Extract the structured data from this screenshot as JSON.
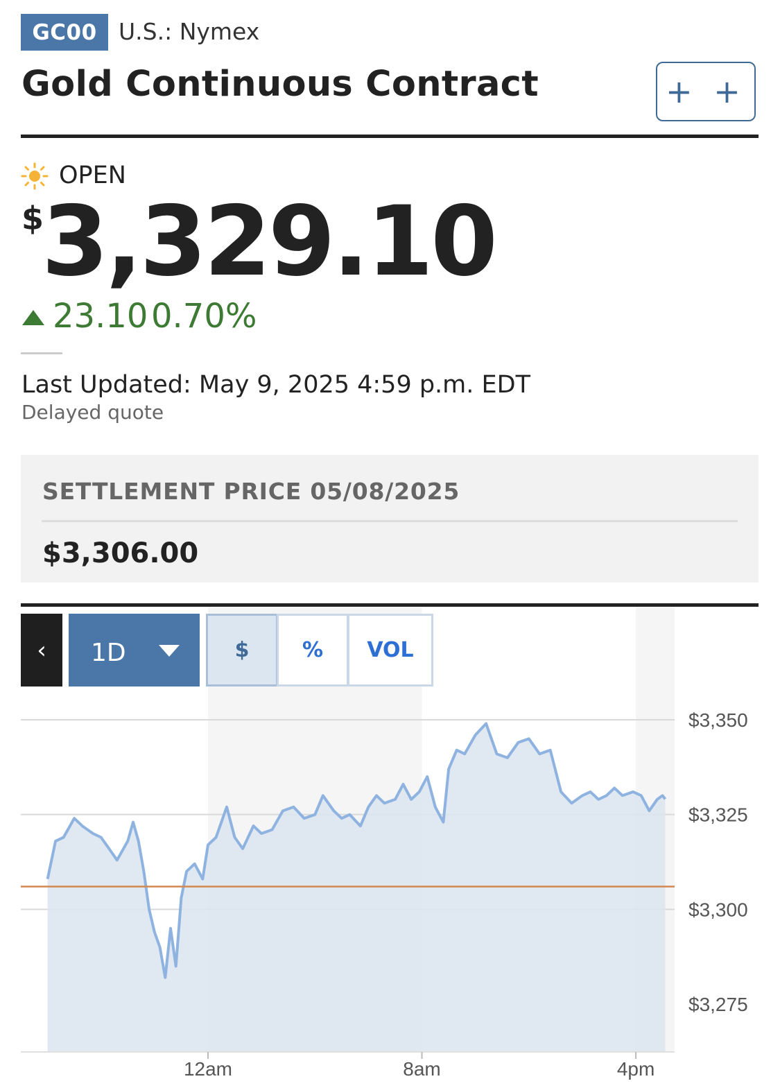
{
  "header": {
    "ticker": "GC00",
    "exchange": "U.S.: Nymex",
    "title": "Gold Continuous Contract",
    "watchlist_icon": "plus-plus-icon",
    "watchlist_label": "+ +"
  },
  "quote": {
    "status_icon": "sun-icon",
    "status": "OPEN",
    "currency_symbol": "$",
    "price": "3,329.10",
    "change": "23.10",
    "change_percent": "0.70%",
    "direction": "up",
    "last_updated": "Last Updated: May 9, 2025 4:59 p.m. EDT",
    "delay_note": "Delayed quote"
  },
  "settlement": {
    "label": "SETTLEMENT PRICE 05/08/2025",
    "value": "$3,306.00"
  },
  "chart_toolbar": {
    "back_icon": "chevron-left-icon",
    "back_label": "‹",
    "range": "1D",
    "modes": [
      "$",
      "%",
      "VOL"
    ],
    "active_mode": "$"
  },
  "colors": {
    "brand_blue": "#4a76a8",
    "positive": "#3d7a33",
    "line": "#8fb3e0",
    "area": "#dbe4ee",
    "settlement_line": "#d2884f"
  },
  "chart_data": {
    "type": "area",
    "title": "",
    "xlabel": "",
    "ylabel": "",
    "x_ticks": [
      "12am",
      "8am",
      "4pm"
    ],
    "y_ticks": [
      3350,
      3325,
      3300,
      3275
    ],
    "y_tick_labels": [
      "$3,350",
      "$3,325",
      "$3,300",
      "$3,275"
    ],
    "ylim": [
      3272,
      3353
    ],
    "x_hours": [
      18,
      30
    ],
    "settlement_price": 3306.0,
    "grid": true,
    "series": [
      {
        "x": [
          18.0,
          18.3,
          18.6,
          19.0,
          19.3,
          19.7,
          20.0,
          20.3,
          20.6,
          21.0,
          21.2,
          21.4,
          21.6,
          21.8,
          22.0,
          22.2,
          22.4,
          22.6,
          22.8,
          23.0,
          23.2,
          23.5,
          23.8,
          24.0,
          24.3,
          24.7,
          25.0,
          25.3,
          25.7,
          26.0,
          26.4,
          26.8,
          27.2,
          27.6,
          28.0,
          28.3,
          28.7,
          29.0,
          29.3,
          29.7,
          30.0,
          30.3,
          30.6,
          31.0,
          31.3,
          31.6,
          31.9,
          32.2,
          32.5,
          32.8,
          33.0,
          33.3,
          33.6,
          34.0,
          34.4,
          34.8,
          35.2,
          35.6,
          36.0,
          36.4,
          36.8,
          37.2,
          37.6,
          38.0,
          38.3,
          38.6,
          38.9,
          39.2,
          39.5,
          39.9,
          40.2,
          40.5,
          40.8,
          41.0,
          41.1
        ],
        "y": [
          3308,
          3318,
          3319,
          3324,
          3322,
          3320,
          3319,
          3316,
          3313,
          3318,
          3323,
          3318,
          3310,
          3300,
          3294,
          3290,
          3282,
          3295,
          3285,
          3303,
          3310,
          3312,
          3308,
          3317,
          3319,
          3327,
          3319,
          3316,
          3322,
          3320,
          3321,
          3326,
          3327,
          3324,
          3325,
          3330,
          3326,
          3324,
          3325,
          3322,
          3327,
          3330,
          3328,
          3329,
          3333,
          3329,
          3331,
          3335,
          3327,
          3323,
          3337,
          3342,
          3341,
          3346,
          3349,
          3341,
          3340,
          3344,
          3345,
          3341,
          3342,
          3331,
          3328,
          3330,
          3331,
          3329,
          3330,
          3332,
          3330,
          3331,
          3330,
          3326,
          3329,
          3330,
          3329.1
        ]
      }
    ]
  }
}
